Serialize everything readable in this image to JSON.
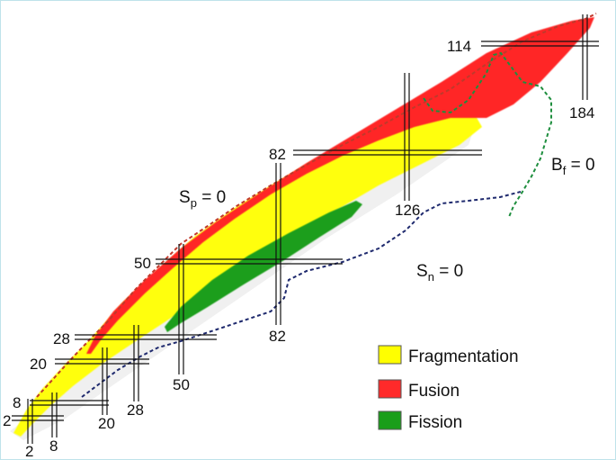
{
  "separation_lines": {
    "proton": {
      "label_main": "S",
      "label_sub": "p",
      "label_rest": " = 0",
      "color": "#c0392b"
    },
    "neutron": {
      "label_main": "S",
      "label_sub": "n",
      "label_rest": " = 0",
      "color": "#1f2a6e"
    },
    "fission": {
      "label_main": "B",
      "label_sub": "f",
      "label_rest": " = 0",
      "color": "#1e8e3e"
    }
  },
  "magic_numbers": {
    "proton": [
      "2",
      "8",
      "20",
      "28",
      "50",
      "82",
      "114"
    ],
    "neutron": [
      "2",
      "8",
      "20",
      "28",
      "50",
      "82",
      "126",
      "184"
    ]
  },
  "legend": [
    {
      "label": "Fragmentation",
      "color": "#ffff00"
    },
    {
      "label": "Fusion",
      "color": "#ff2a2a"
    },
    {
      "label": "Fission",
      "color": "#1a9e1a"
    }
  ]
}
